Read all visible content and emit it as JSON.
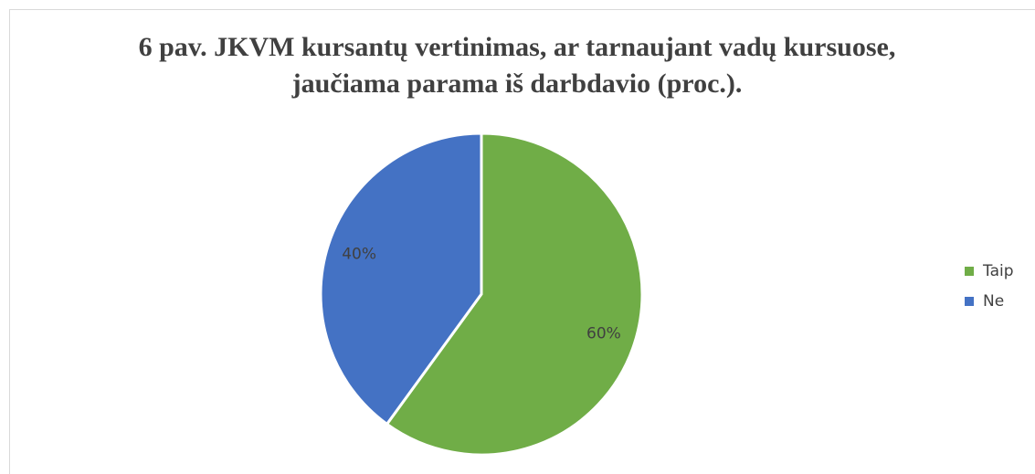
{
  "chart_data": {
    "type": "pie",
    "title": "6 pav. JKVM kursantų vertinimas, ar tarnaujant vadų kursuose, jaučiama parama iš darbdavio (proc.).",
    "categories": [
      "Taip",
      "Ne"
    ],
    "values": [
      60,
      40
    ],
    "value_labels": [
      "60%",
      "40%"
    ],
    "colors": [
      "#70ad47",
      "#4472c4"
    ],
    "legend": "right"
  }
}
